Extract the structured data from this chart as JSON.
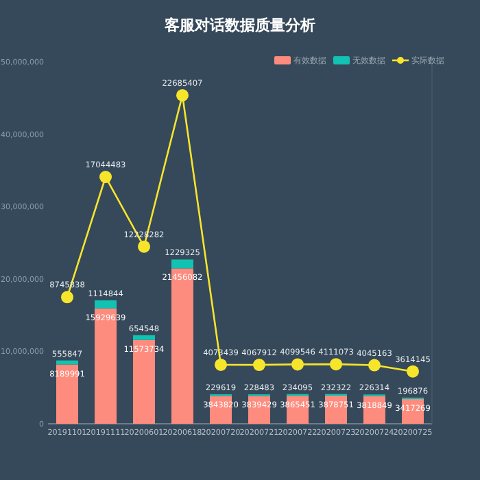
{
  "chart_data": {
    "type": "bar",
    "title": "客服对话数据质量分析",
    "categories": [
      "20191101",
      "20191111",
      "20200601",
      "20200618",
      "20200720",
      "20200721",
      "20200722",
      "20200723",
      "20200724",
      "20200725"
    ],
    "series": [
      {
        "name": "有效数据",
        "color": "#fe8c7e",
        "values": [
          8189991,
          15929639,
          11573734,
          21456082,
          3843820,
          3839429,
          3865451,
          3878751,
          3818849,
          3417269
        ]
      },
      {
        "name": "无效数据",
        "color": "#12c2b2",
        "values": [
          555847,
          1114844,
          654548,
          1229325,
          229619,
          228483,
          234095,
          232322,
          226314,
          196876
        ]
      },
      {
        "name": "实际数据",
        "type": "line",
        "axis": "y2",
        "color": "#f7e52c",
        "values": [
          8745838,
          17044483,
          12228282,
          22685407,
          4073439,
          4067912,
          4099546,
          4111073,
          4045163,
          3614145
        ]
      }
    ],
    "stacked": true,
    "ylim": [
      0,
      50000000
    ],
    "y2lim": [
      0,
      25000000
    ],
    "yticks": [
      {
        "value": 0,
        "label": "0"
      },
      {
        "value": 10000000,
        "label": "10,000,000"
      },
      {
        "value": 20000000,
        "label": "20,000,000"
      },
      {
        "value": 30000000,
        "label": "30,000,000"
      },
      {
        "value": 40000000,
        "label": "40,000,000"
      },
      {
        "value": 50000000,
        "label": "50,000,000"
      }
    ],
    "legend": "top right",
    "marker": "circle",
    "data_labels": true
  }
}
